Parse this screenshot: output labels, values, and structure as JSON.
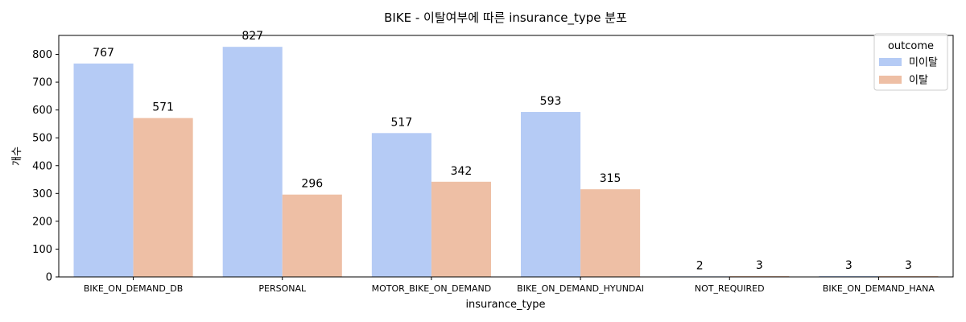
{
  "chart_data": {
    "type": "bar",
    "title": "BIKE - 이탈여부에 따른 insurance_type 분포",
    "xlabel": "insurance_type",
    "ylabel": "개수",
    "categories": [
      "BIKE_ON_DEMAND_DB",
      "PERSONAL",
      "MOTOR_BIKE_ON_DEMAND",
      "BIKE_ON_DEMAND_HYUNDAI",
      "NOT_REQUIRED",
      "BIKE_ON_DEMAND_HANA"
    ],
    "series": [
      {
        "name": "미이탈",
        "color": "#b5cbf5",
        "values": [
          767,
          827,
          517,
          593,
          2,
          3
        ]
      },
      {
        "name": "이탈",
        "color": "#eebfa5",
        "values": [
          571,
          296,
          342,
          315,
          3,
          3
        ]
      }
    ],
    "ylim": [
      0,
      868
    ],
    "yticks": [
      0,
      100,
      200,
      300,
      400,
      500,
      600,
      700,
      800
    ],
    "grid": false,
    "legend": {
      "title": "outcome",
      "placement": "top-right"
    }
  }
}
